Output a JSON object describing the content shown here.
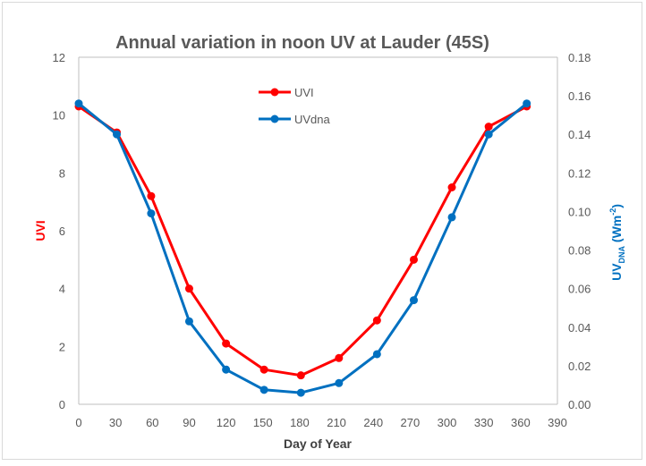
{
  "chart_data": {
    "type": "line",
    "title": "Annual variation in noon  UV at Lauder (45S)",
    "xlabel": "Day of Year",
    "ylabel": "UVI",
    "y2label": {
      "main": "UV",
      "sub": "DNA",
      "unit_open": " (Wm",
      "sup": "-2",
      "unit_close": ")"
    },
    "xlim": [
      0,
      390
    ],
    "xticks": [
      0,
      30,
      60,
      90,
      120,
      150,
      180,
      210,
      240,
      270,
      300,
      330,
      360,
      390
    ],
    "ylim": [
      0,
      12
    ],
    "yticks": [
      0,
      2,
      4,
      6,
      8,
      10,
      12
    ],
    "y2lim": [
      0,
      0.18
    ],
    "y2ticks": [
      "0.00",
      "0.02",
      "0.04",
      "0.06",
      "0.08",
      "0.10",
      "0.12",
      "0.14",
      "0.16",
      "0.18"
    ],
    "grid": false,
    "legend": "top-center",
    "series": [
      {
        "name": "UVI",
        "axis": "left",
        "color": "#ff0000",
        "x": [
          0,
          31,
          59,
          90,
          120,
          151,
          181,
          212,
          243,
          273,
          304,
          334,
          365
        ],
        "y": [
          10.3,
          9.4,
          7.2,
          4.0,
          2.1,
          1.2,
          1.0,
          1.6,
          2.9,
          5.0,
          7.5,
          9.6,
          10.3
        ]
      },
      {
        "name": "UVdna",
        "axis": "right",
        "color": "#0070c0",
        "x": [
          0,
          31,
          59,
          90,
          120,
          151,
          181,
          212,
          243,
          273,
          304,
          334,
          365
        ],
        "y": [
          0.156,
          0.14,
          0.099,
          0.043,
          0.018,
          0.0075,
          0.006,
          0.011,
          0.026,
          0.054,
          0.097,
          0.14,
          0.156
        ]
      }
    ]
  }
}
